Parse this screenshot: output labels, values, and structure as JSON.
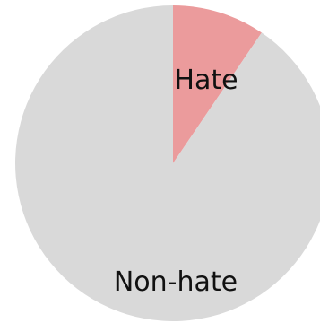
{
  "chart_data": {
    "type": "pie",
    "start_angle_deg": 0,
    "direction": "clockwise",
    "slices": [
      {
        "label": "Hate",
        "value": 9.5,
        "color": "#eb9b9c"
      },
      {
        "label": "Non-hate",
        "value": 90.5,
        "color": "#d9d9d9"
      }
    ]
  }
}
